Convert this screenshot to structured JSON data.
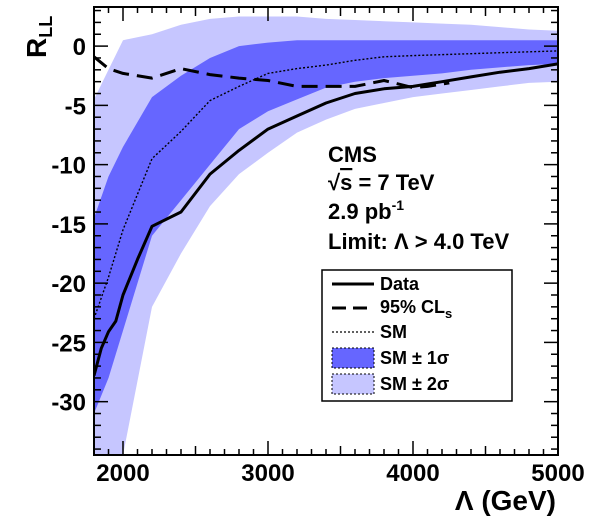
{
  "chart_data": {
    "type": "line",
    "xlabel": "Λ (GeV)",
    "ylabel": "R_LL",
    "xlim": [
      1800,
      5000
    ],
    "ylim": [
      -34.5,
      3.3
    ],
    "x_ticks": [
      "2000",
      "3000",
      "4000",
      "5000"
    ],
    "y_ticks": [
      "0",
      "-5",
      "-10",
      "-15",
      "-20",
      "-25",
      "-30"
    ],
    "annotations": [
      "CMS",
      "√s = 7 TeV",
      "2.9 pb⁻¹",
      "Limit: Λ > 4.0 TeV"
    ],
    "legend_position": "lower-right",
    "legend": [
      "Data",
      "95% CLs",
      "SM",
      "SM ± 1σ",
      "SM ± 2σ"
    ],
    "colors": {
      "band_1sigma": "#6666ff",
      "band_2sigma": "#c6c6ff",
      "lines": "#000000"
    },
    "series": [
      {
        "name": "Data",
        "style": "solid",
        "x": [
          1800,
          1850,
          1900,
          1950,
          2000,
          2100,
          2200,
          2400,
          2600,
          2800,
          3000,
          3200,
          3400,
          3600,
          3800,
          4000,
          4200,
          4400,
          4600,
          4800,
          5000
        ],
        "y": [
          -27.8,
          -25.5,
          -24.1,
          -23.2,
          -21.0,
          -18.0,
          -15.2,
          -14.0,
          -10.8,
          -8.8,
          -7.0,
          -5.9,
          -4.8,
          -4.0,
          -3.6,
          -3.4,
          -3.0,
          -2.6,
          -2.2,
          -1.9,
          -1.5
        ]
      },
      {
        "name": "95% CLs",
        "style": "dashed",
        "x": [
          1800,
          1900,
          2000,
          2200,
          2400,
          2600,
          2800,
          3000,
          3200,
          3400,
          3600,
          3800,
          4000,
          4100,
          4250
        ],
        "y": [
          -0.9,
          -1.9,
          -2.3,
          -2.7,
          -1.9,
          -2.4,
          -2.7,
          -2.9,
          -3.4,
          -3.4,
          -3.4,
          -2.9,
          -3.5,
          -3.4,
          -3.1
        ]
      },
      {
        "name": "SM",
        "style": "dotted",
        "x": [
          1800,
          1900,
          2000,
          2200,
          2400,
          2600,
          2800,
          3000,
          3200,
          3400,
          3600,
          3800,
          4000,
          4500,
          5000
        ],
        "y": [
          -23.0,
          -19.5,
          -15.5,
          -9.5,
          -7.2,
          -4.6,
          -3.4,
          -2.3,
          -1.9,
          -1.6,
          -1.2,
          -0.9,
          -0.8,
          -0.6,
          -0.4
        ]
      },
      {
        "name": "SM ± 1σ",
        "style": "band",
        "x": [
          1800,
          1900,
          2000,
          2200,
          2400,
          2600,
          2800,
          3000,
          3200,
          3400,
          3600,
          3800,
          4000,
          4200,
          4400,
          4600,
          4800,
          5000
        ],
        "upper": [
          -14.5,
          -11.0,
          -8.5,
          -4.3,
          -2.5,
          -1.0,
          0.0,
          0.3,
          0.5,
          0.5,
          0.5,
          0.5,
          0.5,
          0.5,
          0.5,
          0.5,
          0.5,
          0.5
        ],
        "lower": [
          -31.0,
          -28.0,
          -24.0,
          -16.0,
          -13.0,
          -10.0,
          -7.0,
          -5.5,
          -4.5,
          -3.5,
          -3.0,
          -2.7,
          -2.5,
          -2.3,
          -2.0,
          -1.8,
          -1.6,
          -1.5
        ]
      },
      {
        "name": "SM ± 2σ",
        "style": "band",
        "x": [
          1800,
          1900,
          2000,
          2200,
          2400,
          2600,
          2800,
          3000,
          3200,
          3400,
          3600,
          3800,
          4000,
          4200,
          4400,
          4600,
          4800,
          5000
        ],
        "upper": [
          -4.5,
          -2.0,
          0.5,
          1.0,
          1.8,
          2.3,
          2.5,
          2.5,
          2.5,
          2.3,
          2.2,
          2.1,
          2.0,
          1.9,
          1.8,
          1.6,
          1.4,
          1.3
        ],
        "lower": [
          -34.5,
          -34.5,
          -34.5,
          -22.0,
          -17.5,
          -13.5,
          -10.8,
          -9.0,
          -7.3,
          -6.2,
          -5.3,
          -4.8,
          -4.3,
          -4.0,
          -3.7,
          -3.4,
          -3.1,
          -3.0
        ]
      }
    ]
  }
}
